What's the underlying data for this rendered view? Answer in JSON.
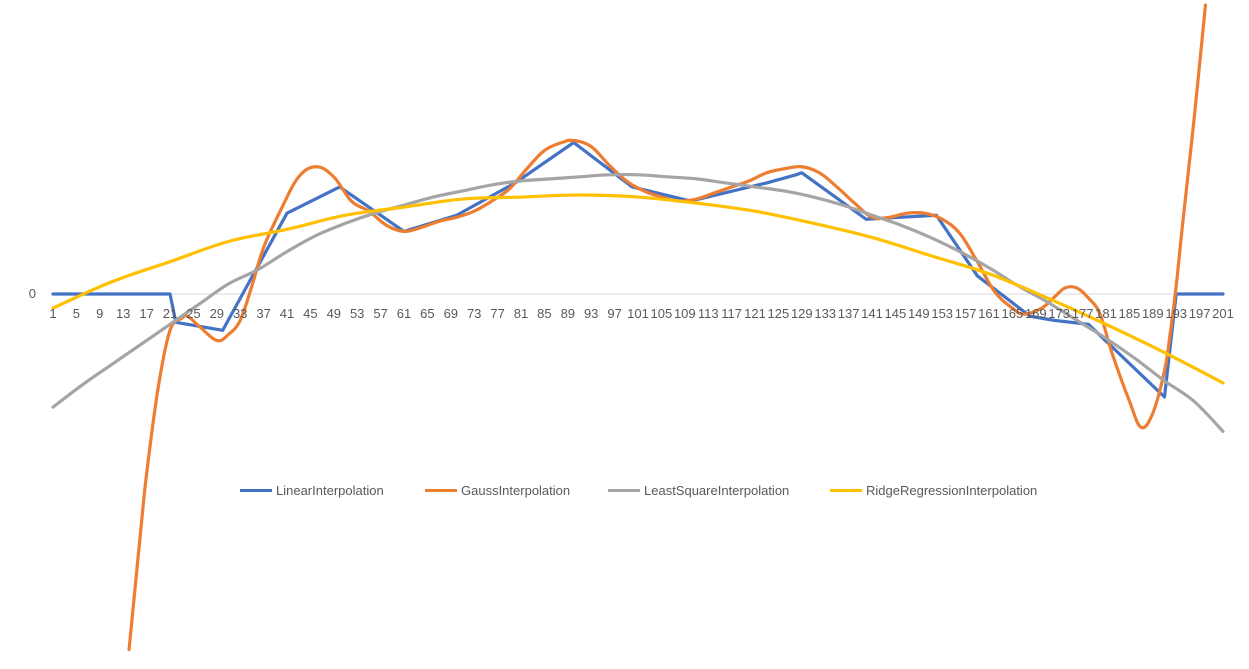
{
  "chart_data": {
    "type": "line",
    "title": "",
    "xlabel": "",
    "ylabel": "",
    "grid": false,
    "legend_position": "center",
    "x_range": [
      1,
      201
    ],
    "ylim": [
      -1.76,
      1.43
    ],
    "x_tick_labels": [
      "1",
      "5",
      "9",
      "13",
      "17",
      "21",
      "25",
      "29",
      "33",
      "37",
      "41",
      "45",
      "49",
      "53",
      "57",
      "61",
      "65",
      "69",
      "73",
      "77",
      "81",
      "85",
      "89",
      "93",
      "97",
      "101",
      "105",
      "109",
      "113",
      "117",
      "121",
      "125",
      "129",
      "133",
      "137",
      "141",
      "145",
      "149",
      "153",
      "157",
      "161",
      "165",
      "169",
      "173",
      "177",
      "181",
      "185",
      "189",
      "193",
      "197",
      "201"
    ],
    "y_tick_labels": [
      {
        "value": 0,
        "label": "0"
      }
    ],
    "series": [
      {
        "name": "LinearInterpolation",
        "color": "#4472C4",
        "x": [
          1,
          21,
          22,
          30,
          41,
          50,
          61,
          70,
          80,
          90,
          100,
          110,
          123,
          128,
          129,
          140,
          152,
          159,
          168,
          172,
          178,
          191,
          193,
          201
        ],
        "y": [
          0,
          0,
          -0.14,
          -0.18,
          0.4,
          0.53,
          0.31,
          0.39,
          0.55,
          0.75,
          0.53,
          0.46,
          0.55,
          0.59,
          0.6,
          0.37,
          0.39,
          0.09,
          -0.11,
          -0.13,
          -0.15,
          -0.51,
          0,
          0
        ]
      },
      {
        "name": "GaussInterpolation",
        "color": "#ED7D31",
        "x": [
          14,
          16,
          17,
          19,
          21,
          23,
          24,
          26,
          29,
          31,
          33,
          35,
          37,
          40,
          43,
          46,
          49,
          52,
          55,
          58,
          61,
          64,
          67,
          70,
          73,
          76,
          79,
          82,
          85,
          88,
          90,
          93,
          96,
          99,
          102,
          105,
          108,
          111,
          114,
          117,
          120,
          123,
          126,
          129,
          132,
          135,
          138,
          141,
          144,
          147,
          150,
          153,
          156,
          159,
          162,
          165,
          167,
          170,
          172,
          174,
          176,
          178,
          180,
          182,
          185,
          187,
          189,
          191,
          192,
          193,
          194,
          196,
          198
        ],
        "y": [
          -1.76,
          -1.17,
          -0.89,
          -0.46,
          -0.18,
          -0.12,
          -0.11,
          -0.16,
          -0.23,
          -0.2,
          -0.13,
          0.04,
          0.23,
          0.42,
          0.58,
          0.63,
          0.58,
          0.46,
          0.41,
          0.34,
          0.31,
          0.33,
          0.36,
          0.38,
          0.41,
          0.46,
          0.52,
          0.62,
          0.71,
          0.75,
          0.76,
          0.73,
          0.64,
          0.56,
          0.51,
          0.48,
          0.46,
          0.47,
          0.5,
          0.53,
          0.56,
          0.6,
          0.62,
          0.63,
          0.6,
          0.53,
          0.45,
          0.38,
          0.38,
          0.4,
          0.4,
          0.37,
          0.3,
          0.16,
          0.01,
          -0.07,
          -0.1,
          -0.07,
          -0.02,
          0.03,
          0.03,
          -0.02,
          -0.1,
          -0.29,
          -0.53,
          -0.66,
          -0.59,
          -0.38,
          -0.19,
          0.04,
          0.32,
          0.85,
          1.43
        ]
      },
      {
        "name": "LeastSquareInterpolation",
        "color": "#A5A5A5",
        "x": [
          1,
          6,
          11,
          16,
          21,
          26,
          31,
          36,
          41,
          46,
          51,
          56,
          61,
          66,
          71,
          76,
          81,
          86,
          91,
          96,
          101,
          106,
          111,
          116,
          121,
          126,
          131,
          136,
          141,
          146,
          151,
          156,
          161,
          166,
          171,
          176,
          181,
          186,
          191,
          196,
          201
        ],
        "y": [
          -0.56,
          -0.45,
          -0.35,
          -0.25,
          -0.15,
          -0.05,
          0.05,
          0.12,
          0.21,
          0.29,
          0.35,
          0.4,
          0.44,
          0.48,
          0.51,
          0.54,
          0.56,
          0.57,
          0.58,
          0.59,
          0.59,
          0.58,
          0.57,
          0.55,
          0.53,
          0.51,
          0.48,
          0.44,
          0.39,
          0.34,
          0.28,
          0.21,
          0.13,
          0.04,
          -0.04,
          -0.13,
          -0.22,
          -0.32,
          -0.43,
          -0.53,
          -0.68
        ]
      },
      {
        "name": "RidgeRegressionInterpolation",
        "color": "#FFC000",
        "x": [
          1,
          11,
          21,
          31,
          41,
          51,
          61,
          71,
          81,
          91,
          101,
          111,
          121,
          131,
          141,
          151,
          161,
          171,
          181,
          191,
          201
        ],
        "y": [
          -0.07,
          0.06,
          0.16,
          0.26,
          0.32,
          0.39,
          0.43,
          0.47,
          0.48,
          0.49,
          0.48,
          0.45,
          0.41,
          0.35,
          0.28,
          0.19,
          0.1,
          -0.02,
          -0.15,
          -0.29,
          -0.44
        ]
      }
    ]
  }
}
